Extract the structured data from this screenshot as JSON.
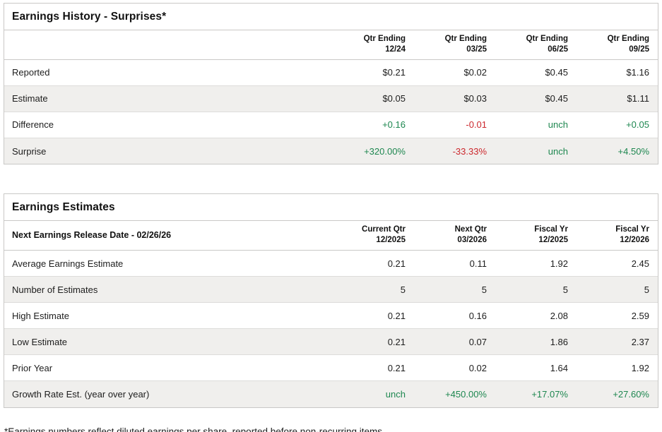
{
  "colors": {
    "green": "#1e8750",
    "red": "#cc282d",
    "default": "#1d1d1d"
  },
  "surprises": {
    "title": "Earnings History - Surprises*",
    "columns": [
      {
        "line1": "Qtr Ending",
        "line2": "12/24"
      },
      {
        "line1": "Qtr Ending",
        "line2": "03/25"
      },
      {
        "line1": "Qtr Ending",
        "line2": "06/25"
      },
      {
        "line1": "Qtr Ending",
        "line2": "09/25"
      }
    ],
    "rows": [
      {
        "label": "Reported",
        "values": [
          {
            "text": "$0.21",
            "tone": "default"
          },
          {
            "text": "$0.02",
            "tone": "default"
          },
          {
            "text": "$0.45",
            "tone": "default"
          },
          {
            "text": "$1.16",
            "tone": "default"
          }
        ]
      },
      {
        "label": "Estimate",
        "values": [
          {
            "text": "$0.05",
            "tone": "default"
          },
          {
            "text": "$0.03",
            "tone": "default"
          },
          {
            "text": "$0.45",
            "tone": "default"
          },
          {
            "text": "$1.11",
            "tone": "default"
          }
        ]
      },
      {
        "label": "Difference",
        "values": [
          {
            "text": "+0.16",
            "tone": "green"
          },
          {
            "text": "-0.01",
            "tone": "red"
          },
          {
            "text": "unch",
            "tone": "green"
          },
          {
            "text": "+0.05",
            "tone": "green"
          }
        ]
      },
      {
        "label": "Surprise",
        "values": [
          {
            "text": "+320.00%",
            "tone": "green"
          },
          {
            "text": "-33.33%",
            "tone": "red"
          },
          {
            "text": "unch",
            "tone": "green"
          },
          {
            "text": "+4.50%",
            "tone": "green"
          }
        ]
      }
    ]
  },
  "estimates": {
    "title": "Earnings Estimates",
    "header_label": "Next Earnings Release Date - 02/26/26",
    "columns": [
      {
        "line1": "Current Qtr",
        "line2": "12/2025"
      },
      {
        "line1": "Next Qtr",
        "line2": "03/2026"
      },
      {
        "line1": "Fiscal Yr",
        "line2": "12/2025"
      },
      {
        "line1": "Fiscal Yr",
        "line2": "12/2026"
      }
    ],
    "rows": [
      {
        "label": "Average Earnings Estimate",
        "values": [
          {
            "text": "0.21",
            "tone": "default"
          },
          {
            "text": "0.11",
            "tone": "default"
          },
          {
            "text": "1.92",
            "tone": "default"
          },
          {
            "text": "2.45",
            "tone": "default"
          }
        ]
      },
      {
        "label": "Number of Estimates",
        "values": [
          {
            "text": "5",
            "tone": "default"
          },
          {
            "text": "5",
            "tone": "default"
          },
          {
            "text": "5",
            "tone": "default"
          },
          {
            "text": "5",
            "tone": "default"
          }
        ]
      },
      {
        "label": "High Estimate",
        "values": [
          {
            "text": "0.21",
            "tone": "default"
          },
          {
            "text": "0.16",
            "tone": "default"
          },
          {
            "text": "2.08",
            "tone": "default"
          },
          {
            "text": "2.59",
            "tone": "default"
          }
        ]
      },
      {
        "label": "Low Estimate",
        "values": [
          {
            "text": "0.21",
            "tone": "default"
          },
          {
            "text": "0.07",
            "tone": "default"
          },
          {
            "text": "1.86",
            "tone": "default"
          },
          {
            "text": "2.37",
            "tone": "default"
          }
        ]
      },
      {
        "label": "Prior Year",
        "values": [
          {
            "text": "0.21",
            "tone": "default"
          },
          {
            "text": "0.02",
            "tone": "default"
          },
          {
            "text": "1.64",
            "tone": "default"
          },
          {
            "text": "1.92",
            "tone": "default"
          }
        ]
      },
      {
        "label": "Growth Rate Est. (year over year)",
        "values": [
          {
            "text": "unch",
            "tone": "green"
          },
          {
            "text": "+450.00%",
            "tone": "green"
          },
          {
            "text": "+17.07%",
            "tone": "green"
          },
          {
            "text": "+27.60%",
            "tone": "green"
          }
        ]
      }
    ]
  },
  "footnote": "*Earnings numbers reflect diluted earnings per share, reported before non-recurring items."
}
